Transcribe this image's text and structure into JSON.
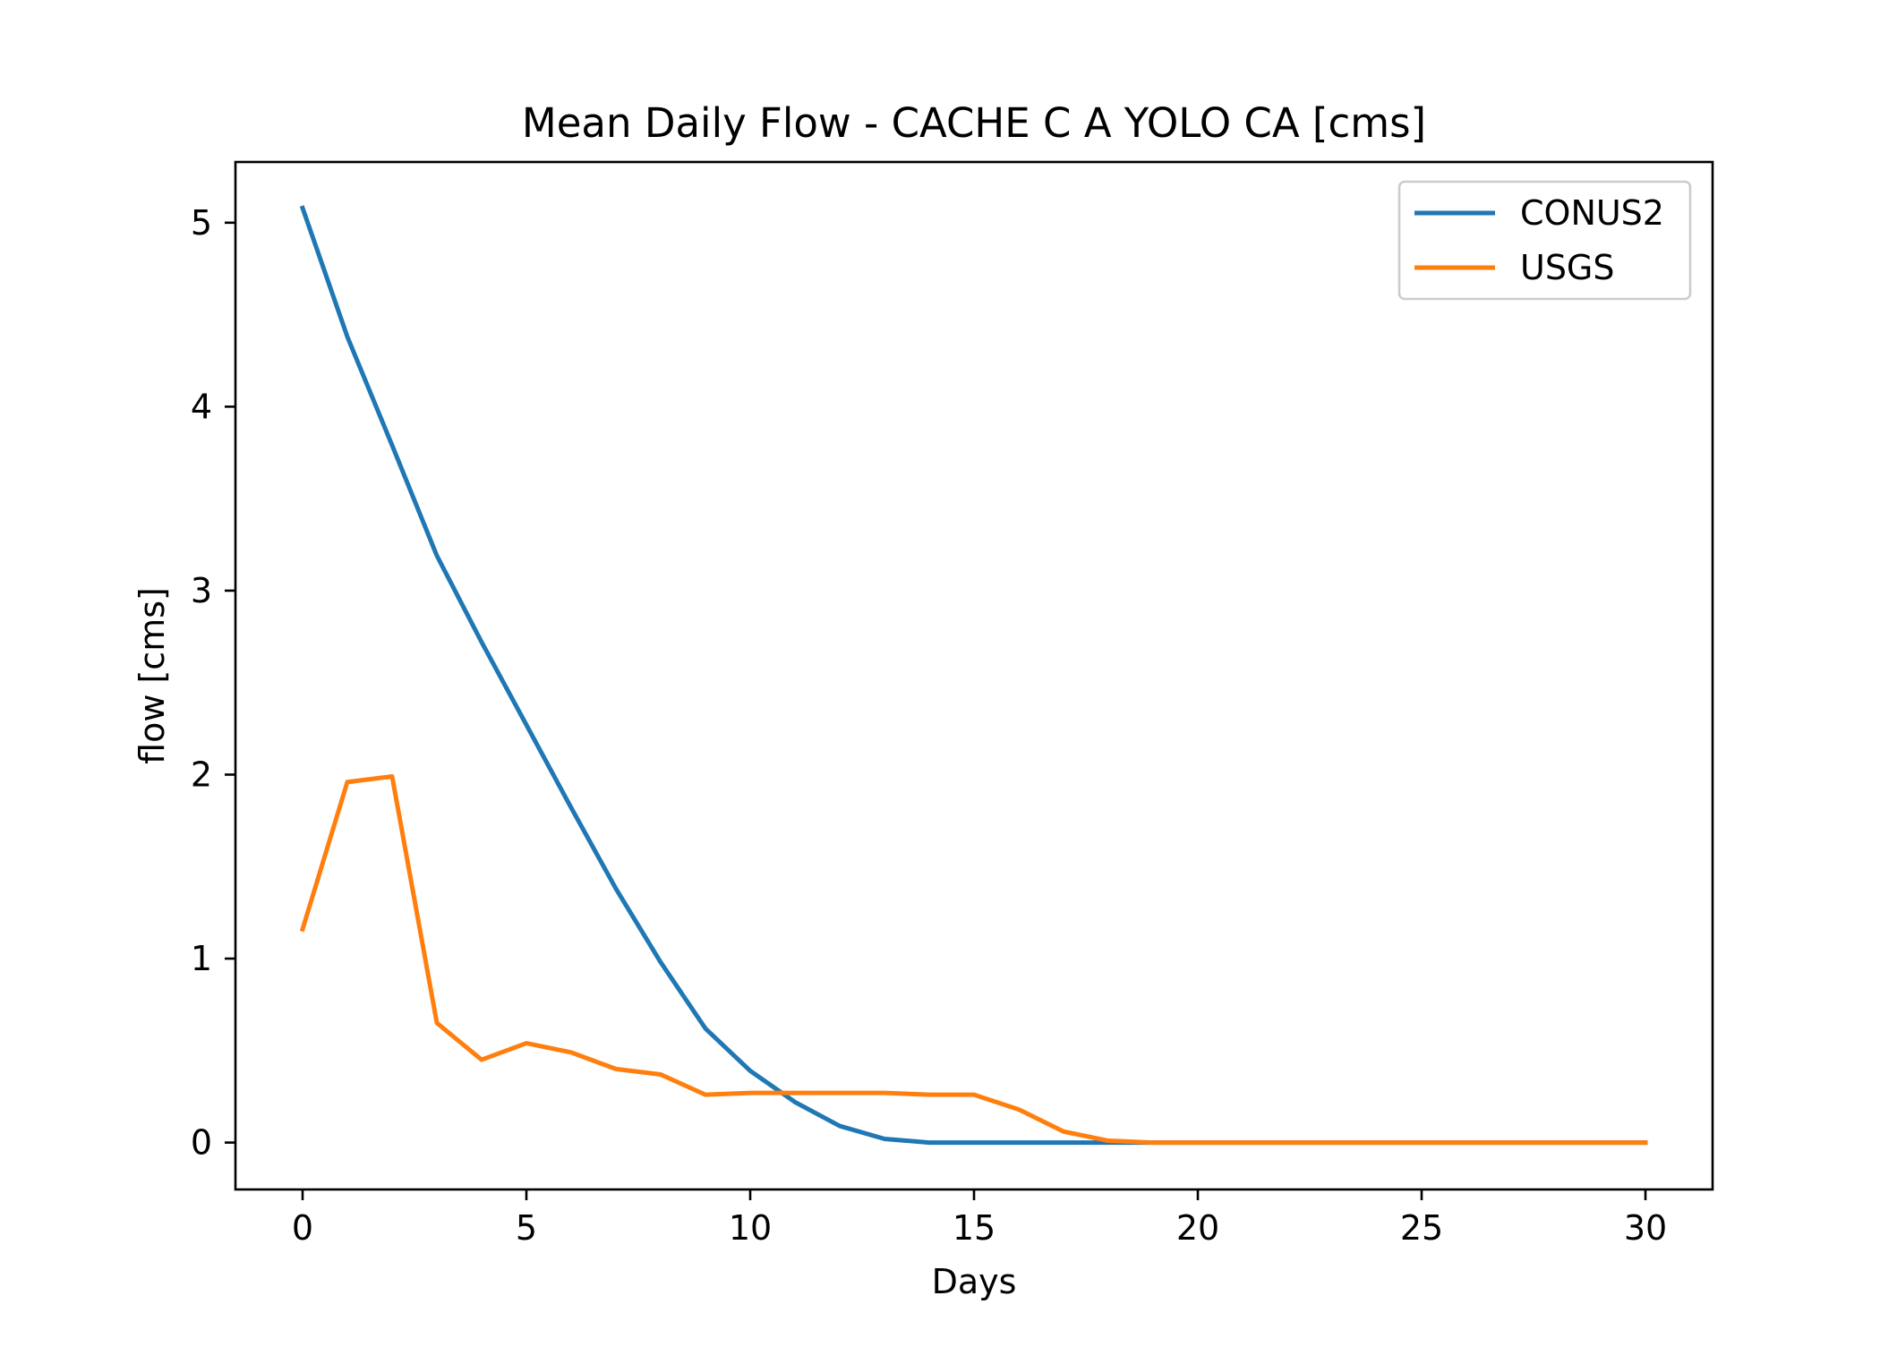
{
  "chart_data": {
    "type": "line",
    "title": "Mean Daily Flow - CACHE C A YOLO CA [cms]",
    "xlabel": "Days",
    "ylabel": "flow [cms]",
    "xlim": [
      -1.5,
      31.5
    ],
    "ylim": [
      -0.255,
      5.33
    ],
    "xticks": [
      0,
      5,
      10,
      15,
      20,
      25,
      30
    ],
    "xtick_labels": [
      "0",
      "5",
      "10",
      "15",
      "20",
      "25",
      "30"
    ],
    "yticks": [
      0,
      1,
      2,
      3,
      4,
      5
    ],
    "ytick_labels": [
      "0",
      "1",
      "2",
      "3",
      "4",
      "5"
    ],
    "grid": false,
    "legend_position": "upper right",
    "x": [
      0,
      1,
      2,
      3,
      4,
      5,
      6,
      7,
      8,
      9,
      10,
      11,
      12,
      13,
      14,
      15,
      16,
      17,
      18,
      19,
      20,
      21,
      22,
      23,
      24,
      25,
      26,
      27,
      28,
      29,
      30
    ],
    "series": [
      {
        "name": "CONUS2",
        "color": "#1f77b4",
        "values": [
          5.08,
          4.38,
          3.79,
          3.19,
          2.72,
          2.27,
          1.82,
          1.38,
          0.98,
          0.62,
          0.39,
          0.22,
          0.09,
          0.02,
          0.0,
          0.0,
          0.0,
          0.0,
          0.0,
          0.0,
          0.0,
          0.0,
          0.0,
          0.0,
          0.0,
          0.0,
          0.0,
          0.0,
          0.0,
          0.0,
          0.0
        ]
      },
      {
        "name": "USGS",
        "color": "#ff7f0e",
        "values": [
          1.16,
          1.96,
          1.99,
          0.65,
          0.45,
          0.54,
          0.49,
          0.4,
          0.37,
          0.26,
          0.27,
          0.27,
          0.27,
          0.27,
          0.26,
          0.26,
          0.18,
          0.06,
          0.01,
          0.0,
          0.0,
          0.0,
          0.0,
          0.0,
          0.0,
          0.0,
          0.0,
          0.0,
          0.0,
          0.0,
          0.0
        ]
      }
    ]
  }
}
